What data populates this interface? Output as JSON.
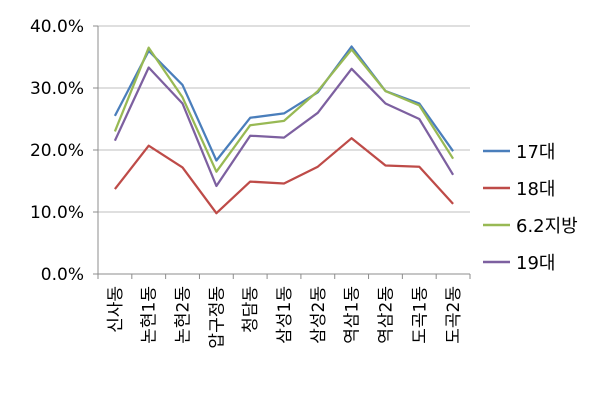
{
  "chart_data": {
    "type": "line",
    "title": "",
    "xlabel": "",
    "ylabel": "",
    "ylim": [
      0,
      40
    ],
    "y_ticks": [
      "0.0%",
      "10.0%",
      "20.0%",
      "30.0%",
      "40.0%"
    ],
    "y_tick_values": [
      0,
      10,
      20,
      30,
      40
    ],
    "grid": true,
    "legend_position": "right",
    "categories": [
      "신사동",
      "논현1동",
      "논현2동",
      "압구정동",
      "청담동",
      "삼성1동",
      "삼성2동",
      "역삼1동",
      "역삼2동",
      "도곡1동",
      "도곡2동"
    ],
    "series": [
      {
        "name": "17대",
        "color": "#4a7ebb",
        "values": [
          25.5,
          36.0,
          30.5,
          18.3,
          25.2,
          25.9,
          29.3,
          36.7,
          29.5,
          27.5,
          19.8
        ]
      },
      {
        "name": "18대",
        "color": "#be4b48",
        "values": [
          13.7,
          20.7,
          17.2,
          9.8,
          14.9,
          14.6,
          17.3,
          21.9,
          17.5,
          17.3,
          11.3
        ]
      },
      {
        "name": "6.2지방",
        "color": "#98b954",
        "values": [
          23.0,
          36.5,
          28.5,
          16.5,
          24.0,
          24.7,
          29.5,
          36.2,
          29.5,
          27.2,
          18.6
        ]
      },
      {
        "name": "19대",
        "color": "#7d60a0",
        "values": [
          21.5,
          33.3,
          27.5,
          14.2,
          22.3,
          22.0,
          26.0,
          33.1,
          27.5,
          25.0,
          16.0
        ]
      }
    ]
  }
}
